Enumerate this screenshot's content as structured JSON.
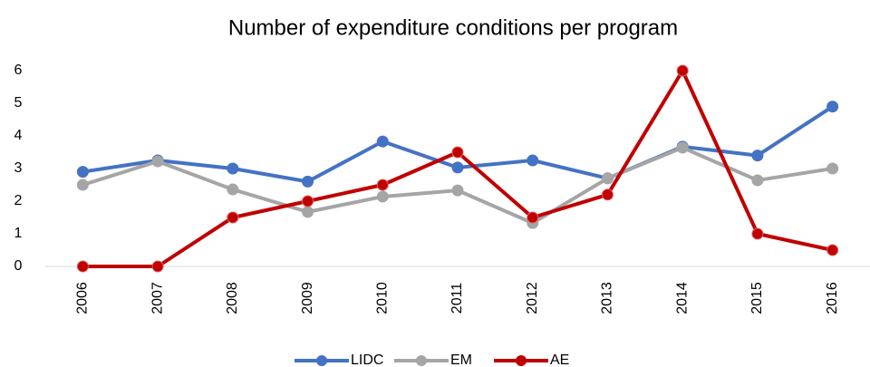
{
  "chart_data": {
    "type": "line",
    "title": "Number of expenditure conditions per program",
    "categories": [
      "2006",
      "2007",
      "2008",
      "2009",
      "2010",
      "2011",
      "2012",
      "2013",
      "2014",
      "2015",
      "2016"
    ],
    "series": [
      {
        "name": "LIDC",
        "color": "#4472c4",
        "values": [
          2.9,
          3.25,
          3.0,
          2.6,
          3.83,
          3.03,
          3.25,
          2.7,
          3.67,
          3.4,
          4.9
        ]
      },
      {
        "name": "EM",
        "color": "#a5a5a5",
        "values": [
          2.5,
          3.22,
          2.36,
          1.67,
          2.14,
          2.33,
          1.33,
          2.7,
          3.64,
          2.64,
          3.0
        ]
      },
      {
        "name": "AE",
        "color": "#c00000",
        "values": [
          0,
          0,
          1.5,
          2,
          2.5,
          3.5,
          1.5,
          2.2,
          6,
          1,
          0.5
        ]
      }
    ],
    "ylim": [
      0,
      6
    ],
    "yticks": [
      0,
      1,
      2,
      3,
      4,
      5,
      6
    ],
    "grid": false,
    "legend": "bottom"
  }
}
